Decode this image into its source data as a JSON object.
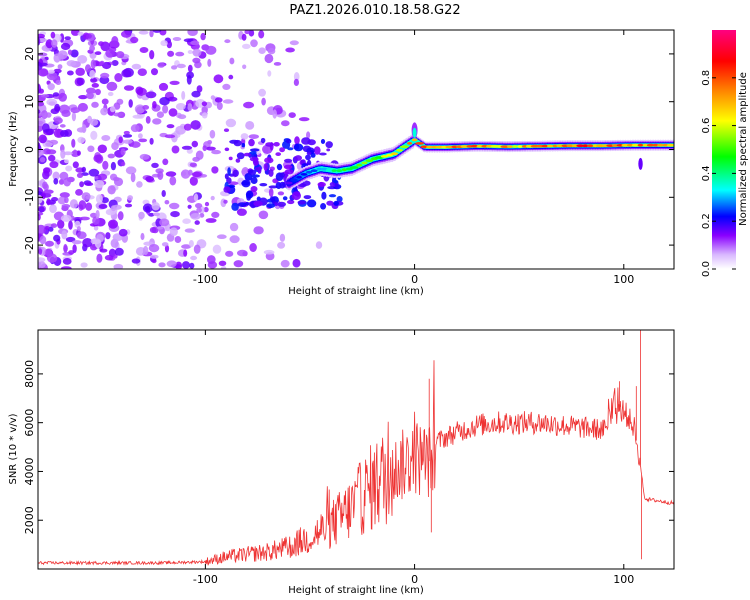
{
  "figure_title": "PAZ1.2026.010.18.58.G22",
  "chart_data": [
    {
      "type": "heatmap",
      "title": "PAZ1.2026.010.18.58.G22",
      "xlabel": "Height of straight line (km)",
      "ylabel": "Frequency (Hz)",
      "xlim": [
        -180,
        124
      ],
      "ylim": [
        -25,
        25
      ],
      "xticks": [
        -100,
        0,
        100
      ],
      "yticks": [
        -20,
        -10,
        0,
        10,
        20
      ],
      "tick_labels_x": [
        "-100",
        "0",
        "100"
      ],
      "tick_labels_y": [
        "-20",
        "-10",
        "0",
        "10",
        "20"
      ],
      "colorbar": {
        "label": "Normalized spectral amplitude",
        "range": [
          0.0,
          1.0
        ],
        "ticks": [
          "0.0",
          "0.2",
          "0.4",
          "0.6",
          "0.8"
        ],
        "tick_values": [
          0.0,
          0.2,
          0.4,
          0.6,
          0.8
        ],
        "colors": [
          "#ffffff",
          "#8a00ff",
          "#0000ff",
          "#00ffff",
          "#00ff00",
          "#ffff00",
          "#ff8000",
          "#ff0000",
          "#ff0080"
        ]
      },
      "ridge": [
        {
          "x": -60,
          "y": -7,
          "amp": 0.2
        },
        {
          "x": -52,
          "y": -5,
          "amp": 0.3
        },
        {
          "x": -45,
          "y": -4,
          "amp": 0.35
        },
        {
          "x": -37,
          "y": -4.5,
          "amp": 0.45
        },
        {
          "x": -30,
          "y": -4,
          "amp": 0.55
        },
        {
          "x": -25,
          "y": -3,
          "amp": 0.55
        },
        {
          "x": -20,
          "y": -2,
          "amp": 0.6
        },
        {
          "x": -15,
          "y": -1.5,
          "amp": 0.6
        },
        {
          "x": -10,
          "y": -1,
          "amp": 0.65
        },
        {
          "x": -5,
          "y": 0.5,
          "amp": 0.7
        },
        {
          "x": 0,
          "y": 2,
          "amp": 0.8
        },
        {
          "x": 5,
          "y": 0.5,
          "amp": 0.8
        },
        {
          "x": 15,
          "y": 0.5,
          "amp": 0.8
        },
        {
          "x": 30,
          "y": 0.7,
          "amp": 0.8
        },
        {
          "x": 45,
          "y": 0.6,
          "amp": 0.75
        },
        {
          "x": 60,
          "y": 0.7,
          "amp": 0.8
        },
        {
          "x": 75,
          "y": 0.8,
          "amp": 0.85
        },
        {
          "x": 90,
          "y": 0.8,
          "amp": 0.85
        },
        {
          "x": 105,
          "y": 0.9,
          "amp": 0.8
        },
        {
          "x": 124,
          "y": 0.9,
          "amp": 0.75
        }
      ]
    },
    {
      "type": "line",
      "xlabel": "Height of straight line (km)",
      "ylabel": "SNR (10 * v/v)",
      "xlim": [
        -180,
        124
      ],
      "ylim": [
        0,
        9800
      ],
      "xticks": [
        -100,
        0,
        100
      ],
      "yticks": [
        2000,
        4000,
        6000,
        8000
      ],
      "tick_labels_x": [
        "-100",
        "0",
        "100"
      ],
      "tick_labels_y": [
        "2000",
        "4000",
        "6000",
        "8000"
      ],
      "color": "#ee3333",
      "series": [
        {
          "name": "SNR",
          "x": [
            -180,
            -150,
            -120,
            -100,
            -90,
            -80,
            -70,
            -60,
            -50,
            -40,
            -30,
            -20,
            -10,
            0,
            8,
            10,
            20,
            30,
            40,
            50,
            60,
            70,
            80,
            90,
            95,
            100,
            105,
            108,
            110,
            112,
            124
          ],
          "y": [
            250,
            250,
            250,
            300,
            500,
            600,
            700,
            900,
            1300,
            1800,
            2500,
            3400,
            4000,
            4600,
            4400,
            5200,
            5600,
            5900,
            6000,
            6000,
            6000,
            5900,
            5800,
            5700,
            6400,
            6500,
            5800,
            4200,
            2900,
            2850,
            2700
          ]
        }
      ],
      "spikes": [
        {
          "x": 7,
          "y": 7800
        },
        {
          "x": 8,
          "y": 1500
        },
        {
          "x": 98,
          "y": 7700
        },
        {
          "x": 106,
          "y": 7500
        },
        {
          "x": 108,
          "y": 9800
        },
        {
          "x": 108.5,
          "y": 400
        }
      ]
    }
  ]
}
